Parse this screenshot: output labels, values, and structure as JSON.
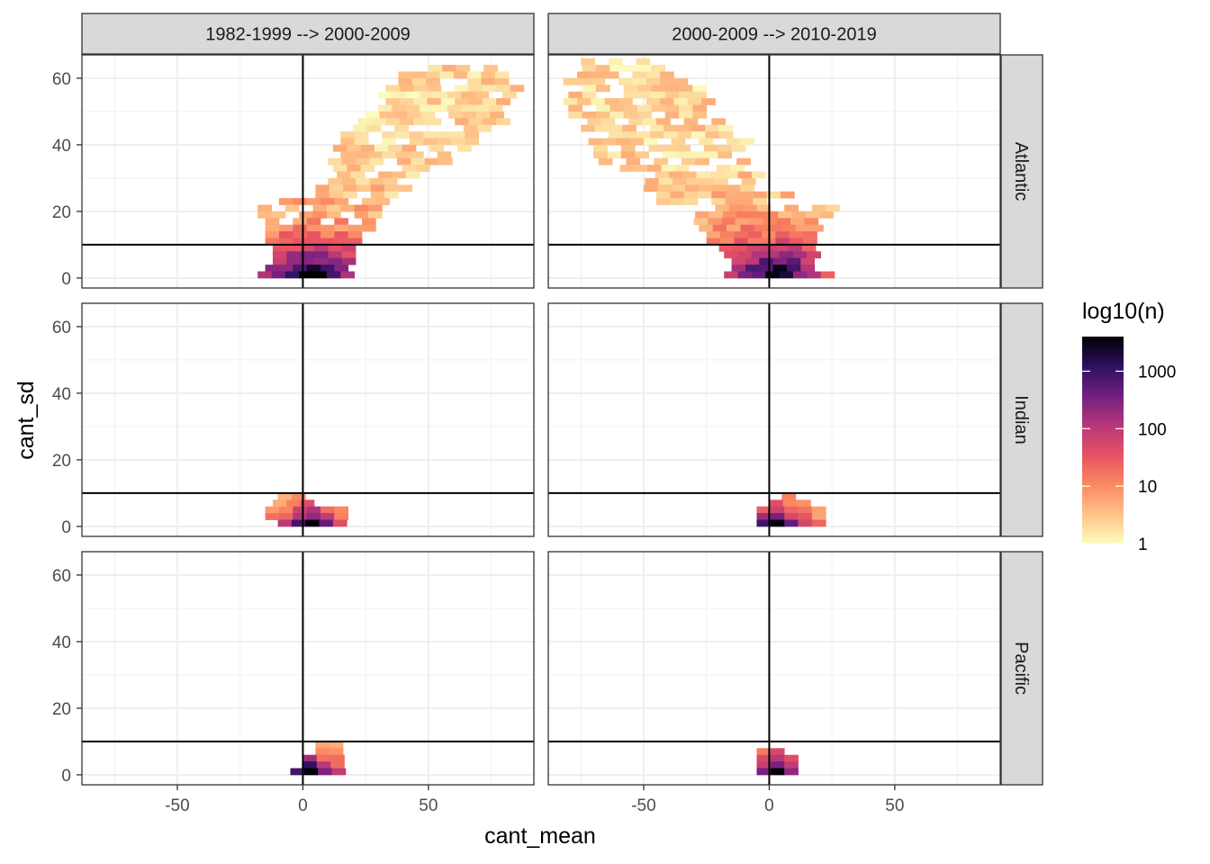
{
  "chart_data": {
    "type": "heatmap",
    "xlabel": "cant_mean",
    "ylabel": "cant_sd",
    "xlim": [
      -88,
      92
    ],
    "ylim": [
      -3,
      67
    ],
    "x_ticks": [
      -50,
      0,
      50
    ],
    "y_ticks": [
      0,
      20,
      40,
      60
    ],
    "x_tick_labels": [
      "-50",
      "0",
      "50"
    ],
    "y_tick_labels": [
      "0",
      "20",
      "40",
      "60"
    ],
    "bin_width": 5.5,
    "bin_height": 2.0,
    "reference_lines": {
      "vline_x": 0,
      "hline_y": 10
    },
    "column_facets": [
      "1982-1999 --> 2000-2009",
      "2000-2009 --> 2010-2019"
    ],
    "row_facets": [
      "Atlantic",
      "Indian",
      "Pacific"
    ],
    "legend": {
      "title": "log10(n)",
      "breaks": [
        1,
        10,
        100,
        1000
      ],
      "labels": [
        "1",
        "10",
        "100",
        "1000"
      ],
      "max": 4000,
      "colors": [
        "#fcfdbf",
        "#fec287",
        "#fb8861",
        "#e75263",
        "#b73779",
        "#721f81",
        "#2c115f",
        "#000004"
      ]
    },
    "panels": [
      {
        "column": 0,
        "row": 0,
        "bands": [
          {
            "y": 62,
            "x0": 50,
            "x1": 75
          },
          {
            "y": 60,
            "x0": 38,
            "x1": 80
          },
          {
            "y": 58,
            "x0": 38,
            "x1": 82
          },
          {
            "y": 56,
            "x0": 33,
            "x1": 85
          },
          {
            "y": 54,
            "x0": 30,
            "x1": 85
          },
          {
            "y": 52,
            "x0": 33,
            "x1": 82
          },
          {
            "y": 50,
            "x0": 30,
            "x1": 78
          },
          {
            "y": 48,
            "x0": 25,
            "x1": 75
          },
          {
            "y": 46,
            "x0": 22,
            "x1": 78
          },
          {
            "y": 44,
            "x0": 20,
            "x1": 75
          },
          {
            "y": 42,
            "x0": 15,
            "x1": 70
          },
          {
            "y": 40,
            "x0": 15,
            "x1": 65
          },
          {
            "y": 38,
            "x0": 12,
            "x1": 62
          },
          {
            "y": 36,
            "x0": 15,
            "x1": 60
          },
          {
            "y": 34,
            "x0": 10,
            "x1": 55
          },
          {
            "y": 32,
            "x0": 12,
            "x1": 50
          },
          {
            "y": 30,
            "x0": 8,
            "x1": 45
          },
          {
            "y": 28,
            "x0": 10,
            "x1": 42
          },
          {
            "y": 26,
            "x0": 5,
            "x1": 40
          },
          {
            "y": 24,
            "x0": 5,
            "x1": 35
          },
          {
            "y": 22,
            "x0": -15,
            "x1": 30
          },
          {
            "y": 20,
            "x0": -18,
            "x1": 30
          },
          {
            "y": 18,
            "x0": -18,
            "x1": 30
          },
          {
            "y": 16,
            "x0": -15,
            "x1": 25
          },
          {
            "y": 14,
            "x0": -15,
            "x1": 25
          },
          {
            "y": 12,
            "x0": -15,
            "x1": 20
          },
          {
            "y": 10,
            "x0": -15,
            "x1": 20
          },
          {
            "y": 8,
            "x0": -12,
            "x1": 18
          },
          {
            "y": 6,
            "x0": -12,
            "x1": 18
          },
          {
            "y": 4,
            "x0": -12,
            "x1": 18
          },
          {
            "y": 2,
            "x0": -15,
            "x1": 18
          },
          {
            "y": 0,
            "x0": -18,
            "x1": 20
          }
        ]
      },
      {
        "column": 1,
        "row": 0,
        "bands": [
          {
            "y": 64,
            "x0": -75,
            "x1": -50
          },
          {
            "y": 62,
            "x0": -80,
            "x1": -40
          },
          {
            "y": 60,
            "x0": -82,
            "x1": -38
          },
          {
            "y": 58,
            "x0": -82,
            "x1": -35
          },
          {
            "y": 56,
            "x0": -80,
            "x1": -30
          },
          {
            "y": 54,
            "x0": -80,
            "x1": -28
          },
          {
            "y": 52,
            "x0": -82,
            "x1": -25
          },
          {
            "y": 50,
            "x0": -80,
            "x1": -30
          },
          {
            "y": 48,
            "x0": -80,
            "x1": -25
          },
          {
            "y": 46,
            "x0": -78,
            "x1": -20
          },
          {
            "y": 44,
            "x0": -75,
            "x1": -15
          },
          {
            "y": 42,
            "x0": -75,
            "x1": -15
          },
          {
            "y": 40,
            "x0": -72,
            "x1": -10
          },
          {
            "y": 38,
            "x0": -70,
            "x1": -10
          },
          {
            "y": 36,
            "x0": -70,
            "x1": -10
          },
          {
            "y": 34,
            "x0": -68,
            "x1": -10
          },
          {
            "y": 32,
            "x0": -65,
            "x1": -10
          },
          {
            "y": 30,
            "x0": -62,
            "x1": -5
          },
          {
            "y": 28,
            "x0": -55,
            "x1": 0
          },
          {
            "y": 26,
            "x0": -50,
            "x1": 0
          },
          {
            "y": 24,
            "x0": -45,
            "x1": 5
          },
          {
            "y": 22,
            "x0": -45,
            "x1": 0
          },
          {
            "y": 20,
            "x0": -38,
            "x1": 28
          },
          {
            "y": 18,
            "x0": -35,
            "x1": 25
          },
          {
            "y": 16,
            "x0": -30,
            "x1": 20
          },
          {
            "y": 14,
            "x0": -28,
            "x1": 20
          },
          {
            "y": 12,
            "x0": -25,
            "x1": 18
          },
          {
            "y": 10,
            "x0": -25,
            "x1": 18
          },
          {
            "y": 8,
            "x0": -20,
            "x1": 18
          },
          {
            "y": 6,
            "x0": -18,
            "x1": 18
          },
          {
            "y": 4,
            "x0": -15,
            "x1": 15
          },
          {
            "y": 2,
            "x0": -15,
            "x1": 15
          },
          {
            "y": 0,
            "x0": -18,
            "x1": 22
          }
        ]
      },
      {
        "column": 0,
        "row": 1,
        "bands": [
          {
            "y": 8,
            "x0": -10,
            "x1": 0
          },
          {
            "y": 6,
            "x0": -12,
            "x1": 0
          },
          {
            "y": 4,
            "x0": -15,
            "x1": 15
          },
          {
            "y": 2,
            "x0": -15,
            "x1": 15
          },
          {
            "y": 0,
            "x0": -10,
            "x1": 15
          }
        ]
      },
      {
        "column": 1,
        "row": 1,
        "bands": [
          {
            "y": 8,
            "x0": 5,
            "x1": 10
          },
          {
            "y": 6,
            "x0": 0,
            "x1": 15
          },
          {
            "y": 4,
            "x0": -5,
            "x1": 20
          },
          {
            "y": 2,
            "x0": -5,
            "x1": 20
          },
          {
            "y": 0,
            "x0": -5,
            "x1": 20
          }
        ]
      },
      {
        "column": 0,
        "row": 2,
        "bands": [
          {
            "y": 8,
            "x0": 5,
            "x1": 15
          },
          {
            "y": 6,
            "x0": 5,
            "x1": 15
          },
          {
            "y": 4,
            "x0": 0,
            "x1": 15
          },
          {
            "y": 2,
            "x0": 0,
            "x1": 15
          },
          {
            "y": 0,
            "x0": -5,
            "x1": 15
          }
        ]
      },
      {
        "column": 1,
        "row": 2,
        "bands": [
          {
            "y": 6,
            "x0": -5,
            "x1": 5
          },
          {
            "y": 4,
            "x0": -5,
            "x1": 10
          },
          {
            "y": 2,
            "x0": -5,
            "x1": 10
          },
          {
            "y": 0,
            "x0": -5,
            "x1": 10
          }
        ]
      }
    ]
  }
}
